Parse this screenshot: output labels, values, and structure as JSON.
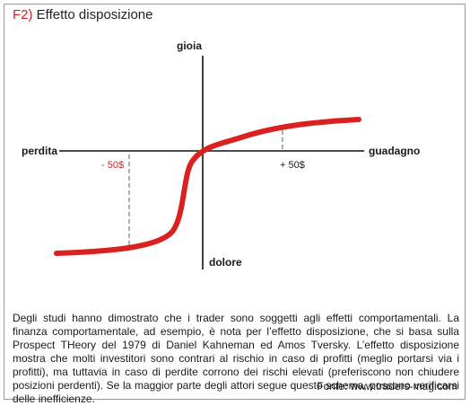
{
  "figure": {
    "number": "F2)",
    "title": "Effetto disposizione"
  },
  "diagram": {
    "axis_labels": {
      "top": "gioia",
      "bottom": "dolore",
      "left": "perdita",
      "right": "guadagno"
    },
    "markers": {
      "negative": "- 50$",
      "positive": "+ 50$"
    },
    "colors": {
      "curve": "#d9221f",
      "negative_marker": "#c62828",
      "axis": "#111111",
      "guide": "#777777"
    }
  },
  "description": "Degli studi hanno dimostrato che i trader sono soggetti agli effetti comportamentali. La finanza comportamentale, ad esempio, è nota per l’effetto disposizione, che si basa sulla Prospect THeory del 1979 di Daniel Kahneman ed Amos Tversky. L’effetto disposizione mostra che molti investitori sono contrari al rischio in caso di profitti (meglio portarsi via i profitti), ma tuttavia in caso di perdite corrono dei rischi elevati (preferiscono non chiudere posizioni perdenti). Se la maggior parte degli attori segue questo schema, possono verificarsi delle inefficienze.",
  "source": "Fonte: www.traders-mag.com"
}
